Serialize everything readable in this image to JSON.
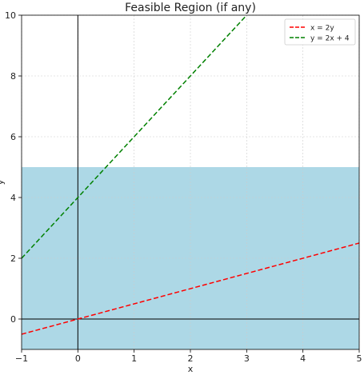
{
  "chart_data": {
    "type": "line",
    "title": "Feasible Region (if any)",
    "xlabel": "x",
    "ylabel": "y",
    "xlim": [
      -1,
      5
    ],
    "ylim": [
      -1,
      10
    ],
    "x_ticks": [
      -1,
      0,
      1,
      2,
      3,
      4,
      5
    ],
    "y_ticks": [
      0,
      2,
      4,
      6,
      8,
      10
    ],
    "grid": true,
    "legend_position": "top-right",
    "region": {
      "x_range": [
        -1,
        5
      ],
      "y_range": [
        -1,
        5
      ],
      "color": "#add8e6"
    },
    "series": [
      {
        "name": "x = 2y",
        "color": "#ff0000",
        "style": "dashed",
        "x": [
          -1,
          5
        ],
        "y": [
          -0.5,
          2.5
        ]
      },
      {
        "name": "y = 2x + 4",
        "color": "#008000",
        "style": "dashed",
        "x": [
          -1,
          3
        ],
        "y": [
          2,
          10
        ]
      }
    ],
    "axis_lines": [
      {
        "orientation": "vertical",
        "x": 0,
        "color": "#000000"
      },
      {
        "orientation": "horizontal",
        "y": 0,
        "color": "#000000"
      }
    ]
  }
}
